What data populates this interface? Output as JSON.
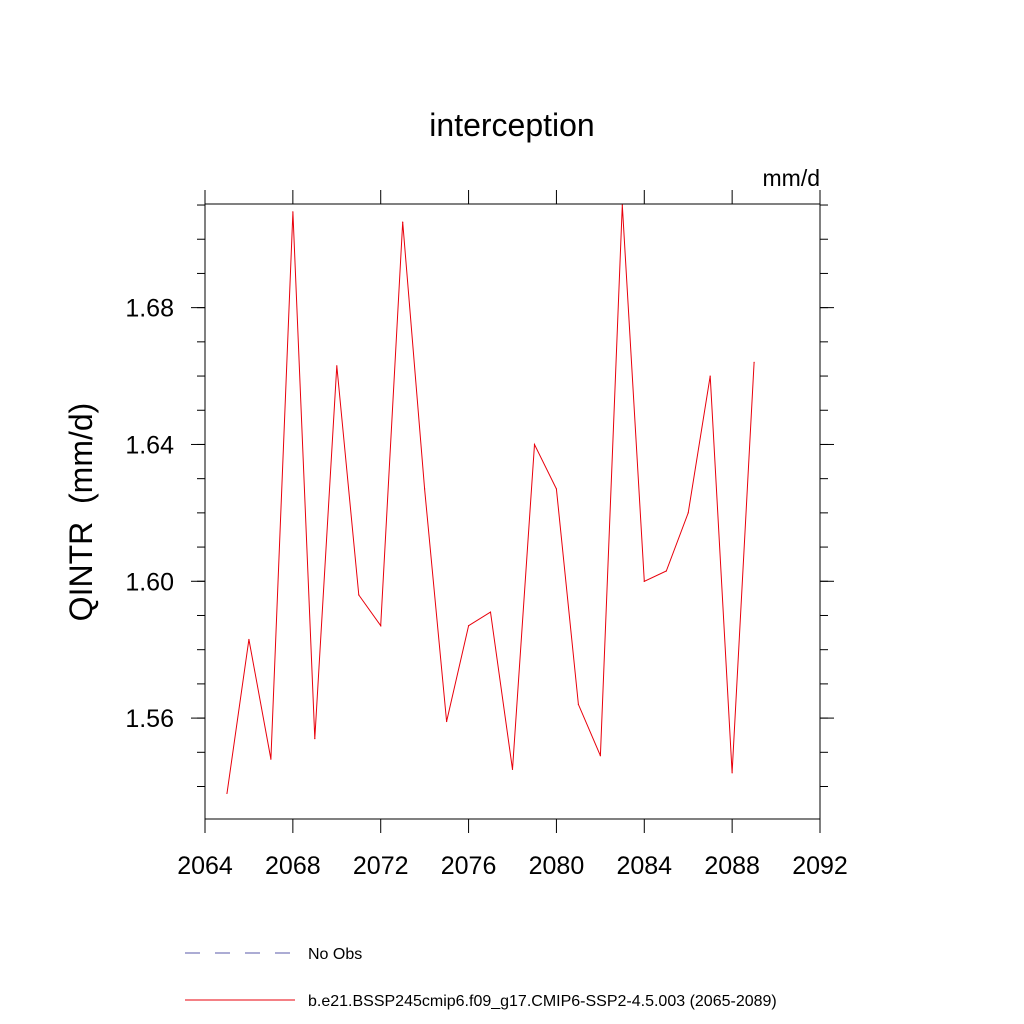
{
  "chart_data": {
    "type": "line",
    "title": "interception",
    "units_label": "mm/d",
    "ylabel": "QINTR  (mm/d)",
    "xlabel": "",
    "xlim": [
      2064,
      2092
    ],
    "ylim": [
      1.5305,
      1.7103
    ],
    "x_ticks": [
      2064,
      2068,
      2072,
      2076,
      2080,
      2084,
      2088,
      2092
    ],
    "x_tick_labels": [
      "2064",
      "2068",
      "2072",
      "2076",
      "2080",
      "2084",
      "2088",
      "2092"
    ],
    "y_ticks": [
      1.56,
      1.6,
      1.64,
      1.68
    ],
    "y_tick_labels": [
      "1.56",
      "1.60",
      "1.64",
      "1.68"
    ],
    "series": [
      {
        "name": "b.e21.BSSP245cmip6.f09_g17.CMIP6-SSP2-4.5.003 (2065-2089)",
        "color": "#e8000b",
        "x": [
          2065,
          2066,
          2067,
          2068,
          2069,
          2070,
          2071,
          2072,
          2073,
          2074,
          2075,
          2076,
          2077,
          2078,
          2079,
          2080,
          2081,
          2082,
          2083,
          2084,
          2085,
          2086,
          2087,
          2088,
          2089
        ],
        "values": [
          1.538,
          1.583,
          1.548,
          1.708,
          1.554,
          1.663,
          1.596,
          1.587,
          1.705,
          1.627,
          1.559,
          1.587,
          1.591,
          1.545,
          1.64,
          1.627,
          1.564,
          1.549,
          1.71,
          1.6,
          1.603,
          1.62,
          1.66,
          1.544,
          1.664
        ]
      }
    ],
    "legend": [
      {
        "label": "No Obs",
        "style": "dashed",
        "color": "#5a5aa8"
      },
      {
        "label": "b.e21.BSSP245cmip6.f09_g17.CMIP6-SSP2-4.5.003 (2065-2089)",
        "style": "solid",
        "color": "#e8000b"
      }
    ],
    "legend_position": "bottom-left"
  }
}
